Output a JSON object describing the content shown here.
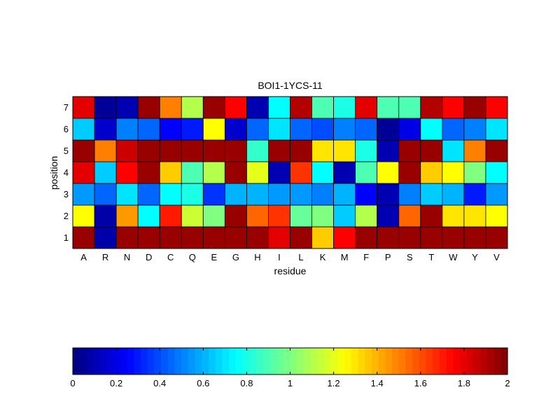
{
  "chart_data": {
    "type": "heatmap",
    "title": "BOI1-1YCS-11",
    "xlabel": "residue",
    "ylabel": "position",
    "x_categories": [
      "A",
      "R",
      "N",
      "D",
      "C",
      "Q",
      "E",
      "G",
      "H",
      "I",
      "L",
      "K",
      "M",
      "F",
      "P",
      "S",
      "T",
      "W",
      "Y",
      "V"
    ],
    "y_categories": [
      "1",
      "2",
      "3",
      "4",
      "5",
      "6",
      "7"
    ],
    "values": [
      [
        1.95,
        0.08,
        1.95,
        1.95,
        1.95,
        1.95,
        1.95,
        1.95,
        1.95,
        1.8,
        1.95,
        1.35,
        1.75,
        1.95,
        1.95,
        1.95,
        1.95,
        1.95,
        1.95,
        1.95
      ],
      [
        1.25,
        0.08,
        1.45,
        0.75,
        1.7,
        1.15,
        1.0,
        1.95,
        1.55,
        1.65,
        0.95,
        1.0,
        0.65,
        1.1,
        0.1,
        1.55,
        1.95,
        1.3,
        1.3,
        1.25
      ],
      [
        0.55,
        0.45,
        0.7,
        0.45,
        0.75,
        0.8,
        0.35,
        0.6,
        0.6,
        0.55,
        0.55,
        0.5,
        0.6,
        0.25,
        0.1,
        0.5,
        0.65,
        0.6,
        0.3,
        0.55
      ],
      [
        1.8,
        0.65,
        1.75,
        1.95,
        1.35,
        0.9,
        1.1,
        1.95,
        1.2,
        0.1,
        1.65,
        0.75,
        0.1,
        0.9,
        1.25,
        1.95,
        1.35,
        1.25,
        1.0,
        0.75
      ],
      [
        1.95,
        1.5,
        1.85,
        1.95,
        1.95,
        1.95,
        1.95,
        1.95,
        0.85,
        1.95,
        1.95,
        1.3,
        1.3,
        0.8,
        0.1,
        1.95,
        1.95,
        0.7,
        1.5,
        1.95
      ],
      [
        0.65,
        0.15,
        0.5,
        0.45,
        0.25,
        0.3,
        1.25,
        0.15,
        0.45,
        0.7,
        0.45,
        0.4,
        0.5,
        0.45,
        0.05,
        0.2,
        0.75,
        0.45,
        0.5,
        0.7
      ],
      [
        1.8,
        0.05,
        0.1,
        1.95,
        1.5,
        1.1,
        1.95,
        1.75,
        0.1,
        0.75,
        1.9,
        0.9,
        0.8,
        1.8,
        0.9,
        0.9,
        1.9,
        1.75,
        1.95,
        1.75
      ]
    ],
    "colormap": "jet",
    "clim": [
      0,
      2
    ],
    "colorbar": {
      "orientation": "horizontal",
      "placement": "bottom",
      "ticks": [
        "0",
        "0.2",
        "0.4",
        "0.6",
        "0.8",
        "1",
        "1.2",
        "1.4",
        "1.6",
        "1.8",
        "2"
      ]
    },
    "grid": true
  }
}
